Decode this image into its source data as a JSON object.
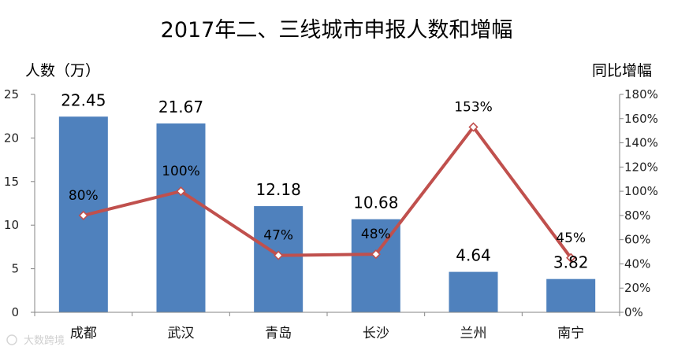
{
  "chart_data": {
    "type": "bar",
    "title": "2017年二、三线城市申报人数和增幅",
    "ylabel_left": "人数（万）",
    "ylabel_right": "同比增幅",
    "categories": [
      "成都",
      "武汉",
      "青岛",
      "长沙",
      "兰州",
      "南宁"
    ],
    "series": [
      {
        "type": "bar",
        "values": [
          22.45,
          21.67,
          12.18,
          10.68,
          4.64,
          3.82
        ],
        "labels": [
          "22.45",
          "21.67",
          "12.18",
          "10.68",
          "4.64",
          "3.82"
        ],
        "color": "#4F81BD",
        "axis": "left"
      },
      {
        "type": "line",
        "values": [
          80,
          100,
          47,
          48,
          153,
          45
        ],
        "labels": [
          "80%",
          "100%",
          "47%",
          "48%",
          "153%",
          "45%"
        ],
        "color": "#C0504D",
        "marker": "diamond-open",
        "axis": "right"
      }
    ],
    "ylim_left": [
      0,
      25
    ],
    "yticks_left": [
      "0",
      "5",
      "10",
      "15",
      "20",
      "25"
    ],
    "ylim_right": [
      0,
      180
    ],
    "yticks_right": [
      "0%",
      "20%",
      "40%",
      "60%",
      "80%",
      "100%",
      "120%",
      "140%",
      "160%",
      "180%"
    ],
    "grid": false,
    "legend": "none"
  },
  "watermark": "大数跨境"
}
